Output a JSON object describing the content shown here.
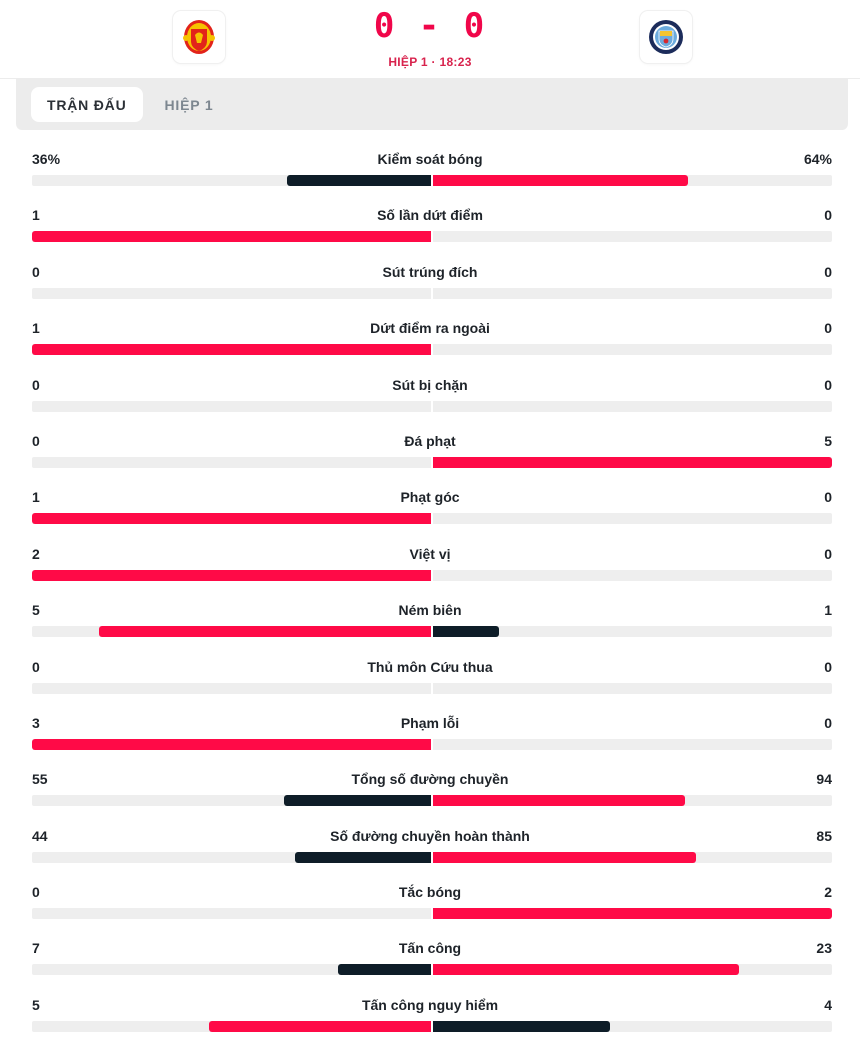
{
  "colors": {
    "leader": "#ff0a47",
    "trailer": "#0e1d28",
    "track": "#eeeeee",
    "score": "#f0064a"
  },
  "header": {
    "home_team_crest": "manchester-united-crest",
    "away_team_crest": "manchester-city-crest",
    "score": "0 - 0",
    "period": "HIỆP 1 · 18:23"
  },
  "tabs": [
    {
      "label": "TRẬN ĐẤU",
      "active": true
    },
    {
      "label": "HIỆP 1",
      "active": false
    }
  ],
  "stats": [
    {
      "label": "Kiểm soát bóng",
      "home": "36%",
      "away": "64%",
      "home_val": 36,
      "away_val": 64
    },
    {
      "label": "Số lần dứt điểm",
      "home": "1",
      "away": "0",
      "home_val": 1,
      "away_val": 0
    },
    {
      "label": "Sút trúng đích",
      "home": "0",
      "away": "0",
      "home_val": 0,
      "away_val": 0
    },
    {
      "label": "Dứt điểm ra ngoài",
      "home": "1",
      "away": "0",
      "home_val": 1,
      "away_val": 0
    },
    {
      "label": "Sút bị chặn",
      "home": "0",
      "away": "0",
      "home_val": 0,
      "away_val": 0
    },
    {
      "label": "Đá phạt",
      "home": "0",
      "away": "5",
      "home_val": 0,
      "away_val": 5
    },
    {
      "label": "Phạt góc",
      "home": "1",
      "away": "0",
      "home_val": 1,
      "away_val": 0
    },
    {
      "label": "Việt vị",
      "home": "2",
      "away": "0",
      "home_val": 2,
      "away_val": 0
    },
    {
      "label": "Ném biên",
      "home": "5",
      "away": "1",
      "home_val": 5,
      "away_val": 1
    },
    {
      "label": "Thủ môn Cứu thua",
      "home": "0",
      "away": "0",
      "home_val": 0,
      "away_val": 0
    },
    {
      "label": "Phạm lỗi",
      "home": "3",
      "away": "0",
      "home_val": 3,
      "away_val": 0
    },
    {
      "label": "Tổng số đường chuyền",
      "home": "55",
      "away": "94",
      "home_val": 55,
      "away_val": 94
    },
    {
      "label": "Số đường chuyền hoàn thành",
      "home": "44",
      "away": "85",
      "home_val": 44,
      "away_val": 85
    },
    {
      "label": "Tắc bóng",
      "home": "0",
      "away": "2",
      "home_val": 0,
      "away_val": 2
    },
    {
      "label": "Tấn công",
      "home": "7",
      "away": "23",
      "home_val": 7,
      "away_val": 23
    },
    {
      "label": "Tấn công nguy hiểm",
      "home": "5",
      "away": "4",
      "home_val": 5,
      "away_val": 4
    }
  ]
}
